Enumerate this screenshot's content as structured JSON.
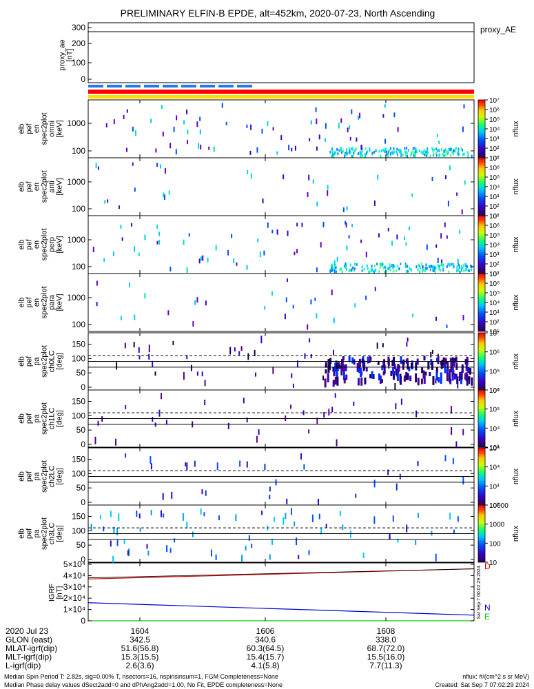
{
  "title": "PRELIMINARY ELFIN-B EPDE, alt=452km, 2020-07-23, North Ascending",
  "created": "Created: Sat Sep  7 07:02:29 2024",
  "side_stamp": "Sat Sep  7 00:02:29 2024",
  "footer": [
    "Median Spin Period T: 2.82s, sig=0.00% T, nsectors=16, nspinsinsum=1, FGM Completeness=None",
    "Median Phase delay values dSect2add=0 and dPhAng2add=1.00, No Fit, EPDE completeness=None"
  ],
  "nflux_unit": "nflux: #/(cm^2 s sr MeV)",
  "time_axis": {
    "ticks": [
      "1604",
      "1606",
      "1608"
    ],
    "rows": [
      {
        "label": "2020 Jul 23",
        "values": [
          "",
          "",
          ""
        ]
      },
      {
        "label": "GLON (east)",
        "values": [
          "342.5",
          "340.6",
          "338.0"
        ]
      },
      {
        "label": "MLAT-igrf(dip)",
        "values": [
          "51.6(56.8)",
          "60.3(64.5)",
          "68.7(72.0)"
        ]
      },
      {
        "label": "MLT-igrf(dip)",
        "values": [
          "15.3(15.5)",
          "15.4(15.7)",
          "15.5(16.0)"
        ]
      },
      {
        "label": "L-igrf(dip)",
        "values": [
          "2.6(3.6)",
          "4.1(5.8)",
          "7.7(11.3)"
        ]
      }
    ]
  },
  "panels": {
    "proxy": {
      "ylabel": [
        "proxy_ae",
        "[nT]"
      ],
      "right_label": "proxy_AE",
      "yticks": [
        "300",
        "200",
        "100",
        "0"
      ]
    },
    "energy": [
      {
        "ylabel": [
          "elb",
          "pef",
          "en",
          "spec2plot",
          "omni",
          "[keV]"
        ],
        "yticks": [
          "1000",
          "100"
        ],
        "cbar_ticks": [
          "10⁷",
          "10⁶",
          "10⁵",
          "10⁴",
          "10³",
          "10²",
          "10¹"
        ],
        "cbar_label": "nflux"
      },
      {
        "ylabel": [
          "elb",
          "pef",
          "en",
          "spec2plot",
          "anti",
          "[keV]"
        ],
        "yticks": [
          "1000",
          "100"
        ],
        "cbar_ticks": [
          "10⁷",
          "10⁶",
          "10⁵",
          "10⁴",
          "10³",
          "10²",
          "10¹"
        ],
        "cbar_label": "nflux"
      },
      {
        "ylabel": [
          "elb",
          "pef",
          "en",
          "spec2plot",
          "perp",
          "[keV]"
        ],
        "yticks": [
          "1000",
          "100"
        ],
        "cbar_ticks": [
          "10⁷",
          "10⁶",
          "10⁵",
          "10⁴",
          "10³",
          "10²",
          "10¹"
        ],
        "cbar_label": "nflux"
      },
      {
        "ylabel": [
          "elb",
          "pef",
          "en",
          "spec2plot",
          "para",
          "[keV]"
        ],
        "yticks": [
          "1000",
          "100"
        ],
        "cbar_ticks": [
          "10⁷",
          "10⁶",
          "10⁵",
          "10⁴",
          "10³",
          "10²",
          "10¹"
        ],
        "cbar_label": "nflux"
      }
    ],
    "pitch": [
      {
        "ylabel": [
          "elb",
          "pef",
          "pa",
          "spec2plot",
          "ch0LC",
          "[deg]"
        ],
        "yticks": [
          "150",
          "100",
          "50",
          "0"
        ],
        "cbar_ticks": [
          "10⁷",
          "10⁶",
          "10⁵",
          "10⁴"
        ],
        "cbar_label": "nflux"
      },
      {
        "ylabel": [
          "elb",
          "pef",
          "pa",
          "spec2plot",
          "ch1LC",
          "[deg]"
        ],
        "yticks": [
          "150",
          "100",
          "50",
          "0"
        ],
        "cbar_ticks": [
          "10⁶",
          "10⁵",
          "10⁴",
          "10³"
        ],
        "cbar_label": "nflux"
      },
      {
        "ylabel": [
          "elb",
          "pef",
          "pa",
          "spec2plot",
          "ch2LC",
          "[deg]"
        ],
        "yticks": [
          "150",
          "100",
          "50",
          "0"
        ],
        "cbar_ticks": [
          "10⁵",
          "10⁴",
          "10³",
          "10²"
        ],
        "cbar_label": "nflux"
      },
      {
        "ylabel": [
          "elb",
          "pef",
          "pa",
          "spec2plot",
          "ch3LC",
          "[deg]"
        ],
        "yticks": [
          "150",
          "100",
          "50",
          "0"
        ],
        "cbar_ticks": [
          "10000",
          "1000",
          "100",
          "10"
        ],
        "cbar_label": "nflux"
      }
    ],
    "igrf": {
      "ylabel": [
        "IGRF",
        "[nT]"
      ],
      "yticks": [
        "5×10⁴",
        "4×10⁴",
        "3×10⁴",
        "2×10⁴",
        "1×10⁴",
        "0"
      ],
      "legend": [
        "D",
        "N",
        "E"
      ]
    }
  },
  "colors": {
    "red_bar": "#ff0000",
    "yellow_bar": "#ffdd00",
    "blue_dash": "#1e7cf0",
    "igrf_D": "#cc0000",
    "igrf_N": "#0000cc",
    "igrf_E": "#00cc00"
  },
  "chart_data": {
    "type": "heatmap",
    "x_range_hhmm": [
      "16:02:48",
      "16:09:12"
    ],
    "igrf_lines": [
      {
        "name": "D",
        "start": 37000,
        "end": 46000
      },
      {
        "name": "N",
        "start": 16000,
        "end": 5000
      },
      {
        "name": "E",
        "start": 0,
        "end": 0
      }
    ],
    "pitch_angle_reference_deg": [
      70,
      90,
      110
    ]
  }
}
